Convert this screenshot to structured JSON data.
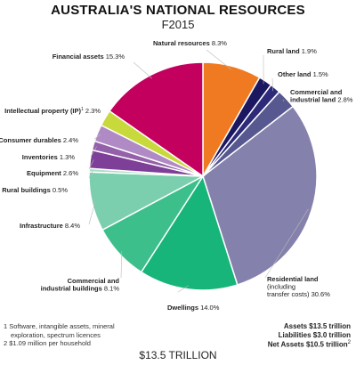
{
  "chart_data": {
    "type": "pie",
    "title": "AUSTRALIA'S NATIONAL RESOURCES",
    "subtitle": "F2015",
    "slices": [
      {
        "name": "Natural resources",
        "value": 8.3,
        "label": "8.3%",
        "color": "#f07a22"
      },
      {
        "name": "Rural land",
        "value": 1.9,
        "label": "1.9%",
        "color": "#1b1760"
      },
      {
        "name": "Other land",
        "value": 1.5,
        "label": "1.5%",
        "color": "#2e2a7a"
      },
      {
        "name": "Commercial and industrial land",
        "value": 2.8,
        "label": "2.8%",
        "color": "#57588f"
      },
      {
        "name": "Residential land",
        "sublabel": "(including transfer costs)",
        "value": 30.6,
        "label": "30.6%",
        "color": "#8581ad"
      },
      {
        "name": "Dwellings",
        "value": 14.0,
        "label": "14.0%",
        "color": "#17b57a"
      },
      {
        "name": "Commercial and industrial buildings",
        "value": 8.1,
        "label": "8.1%",
        "color": "#3cbf8b"
      },
      {
        "name": "Infrastructure",
        "value": 8.4,
        "label": "8.4%",
        "color": "#7ccfae"
      },
      {
        "name": "Rural buildings",
        "value": 0.5,
        "label": "0.5%",
        "color": "#a9dfc6"
      },
      {
        "name": "Equipment",
        "value": 2.6,
        "label": "2.6%",
        "color": "#7d3f97"
      },
      {
        "name": "Inventories",
        "value": 1.3,
        "label": "1.3%",
        "color": "#9360a9"
      },
      {
        "name": "Consumer durables",
        "value": 2.4,
        "label": "2.4%",
        "color": "#b08ac5"
      },
      {
        "name": "Intellectual property (IP)",
        "superscript": "1",
        "value": 2.3,
        "label": "2.3%",
        "color": "#c8d93c"
      },
      {
        "name": "Financial assets",
        "value": 15.3,
        "label": "15.3%",
        "color": "#c4005f"
      }
    ]
  },
  "footnotes": {
    "note1_line1": "1 Software, intangible assets, mineral",
    "note1_line2": "exploration, spectrum licences",
    "note2": "2 $1.09 million per household"
  },
  "summary": {
    "assets": "Assets $13.5 trillion",
    "liabilities": "Liabilities $3.0 trillion",
    "net_assets": "Net Assets $10.5 trillion",
    "net_assets_sup": "2"
  },
  "total_label": "$13.5 TRILLION"
}
